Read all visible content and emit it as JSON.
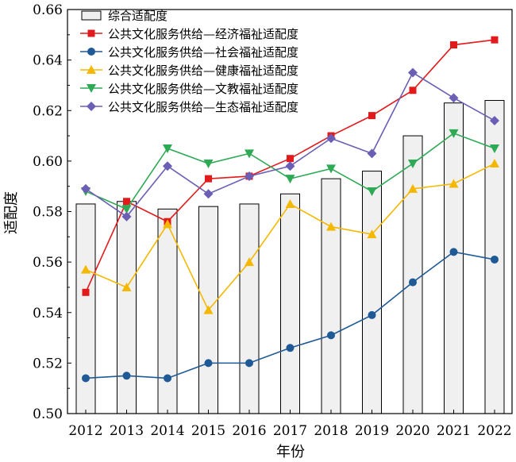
{
  "chart_data": {
    "type": "bar+line",
    "xlabel": "年份",
    "ylabel": "适配度",
    "ylim": [
      0.5,
      0.66
    ],
    "yticks": [
      "0.50",
      "0.52",
      "0.54",
      "0.56",
      "0.58",
      "0.60",
      "0.62",
      "0.64",
      "0.66"
    ],
    "yticks_values": [
      0.5,
      0.52,
      0.54,
      0.56,
      0.58,
      0.6,
      0.62,
      0.64,
      0.66
    ],
    "categories": [
      "2012",
      "2013",
      "2014",
      "2015",
      "2016",
      "2017",
      "2018",
      "2019",
      "2020",
      "2021",
      "2022"
    ],
    "bar_series": {
      "name": "综合适配度",
      "fill": "#f0f0f0",
      "values": [
        0.583,
        0.584,
        0.581,
        0.582,
        0.583,
        0.587,
        0.593,
        0.596,
        0.61,
        0.623,
        0.624
      ]
    },
    "line_series": [
      {
        "name": "公共文化服务供给—经济福祉适配度",
        "color": "#e31a1c",
        "marker": "square",
        "values": [
          0.548,
          0.584,
          0.576,
          0.593,
          0.594,
          0.601,
          0.61,
          0.618,
          0.628,
          0.646,
          0.648
        ]
      },
      {
        "name": "公共文化服务供给—社会福祉适配度",
        "color": "#1f5a96",
        "marker": "circle",
        "values": [
          0.514,
          0.515,
          0.514,
          0.52,
          0.52,
          0.526,
          0.531,
          0.539,
          0.552,
          0.564,
          0.561
        ]
      },
      {
        "name": "公共文化服务供给—健康福祉适配度",
        "color": "#f5b800",
        "marker": "triangle-up",
        "values": [
          0.557,
          0.55,
          0.575,
          0.541,
          0.56,
          0.583,
          0.574,
          0.571,
          0.589,
          0.591,
          0.599
        ]
      },
      {
        "name": "公共文化服务供给—文教福祉适配度",
        "color": "#2eaa55",
        "marker": "triangle-down",
        "values": [
          0.588,
          0.581,
          0.605,
          0.599,
          0.603,
          0.593,
          0.597,
          0.588,
          0.599,
          0.611,
          0.605
        ]
      },
      {
        "name": "公共文化服务供给—生态福祉适配度",
        "color": "#6a5fb5",
        "marker": "diamond",
        "values": [
          0.589,
          0.578,
          0.598,
          0.587,
          0.594,
          0.598,
          0.609,
          0.603,
          0.635,
          0.625,
          0.616
        ]
      }
    ],
    "legend_position": "top-left",
    "grid": false
  }
}
